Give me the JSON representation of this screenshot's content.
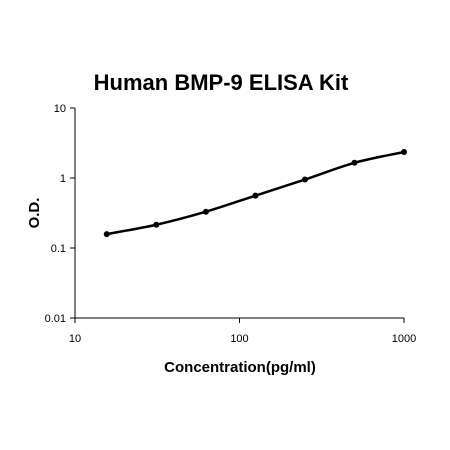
{
  "chart_data": {
    "type": "line",
    "title": "Human BMP-9 ELISA Kit",
    "xlabel": "Concentration(pg/ml)",
    "ylabel": "O.D.",
    "x_scale": "log",
    "y_scale": "log",
    "xlim": [
      10,
      1000
    ],
    "ylim": [
      0.01,
      10
    ],
    "x_ticks": [
      "10",
      "100",
      "1000"
    ],
    "y_ticks": [
      "10",
      "1",
      "0.1",
      "0.01"
    ],
    "grid": false,
    "legend": "none",
    "series": [
      {
        "x": [
          15.6,
          31.2,
          62.5,
          125,
          250,
          500,
          1000
        ],
        "y": [
          0.158,
          0.215,
          0.33,
          0.56,
          0.95,
          1.65,
          2.35
        ],
        "color": "#000000"
      }
    ]
  }
}
